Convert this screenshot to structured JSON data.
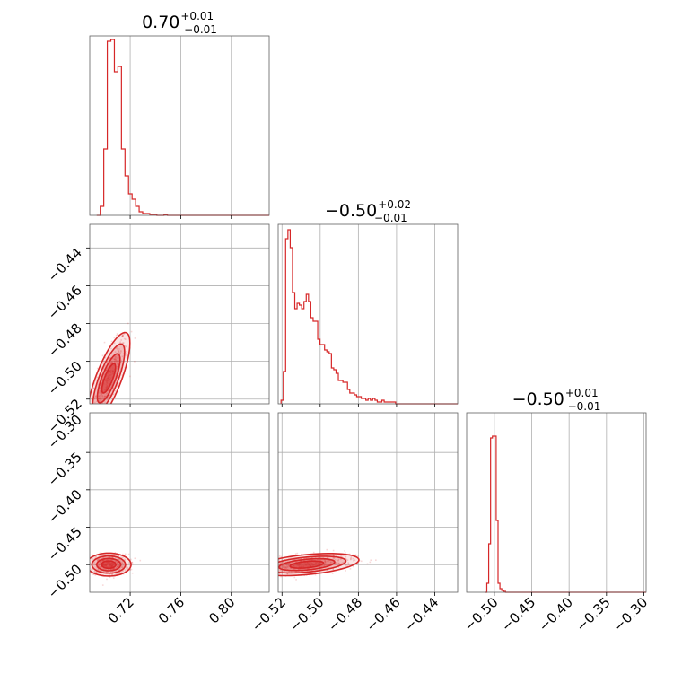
{
  "accent_color": "#d62728",
  "chart_data": {
    "type": "corner",
    "parameters": 3,
    "grid": true,
    "titles": [
      {
        "value": "0.70",
        "plus": "+0.01",
        "minus": "−0.01"
      },
      {
        "value": "−0.50",
        "plus": "+0.02",
        "minus": "−0.01"
      },
      {
        "value": "−0.50",
        "plus": "+0.01",
        "minus": "−0.01"
      }
    ],
    "axes": [
      {
        "range": [
          0.688,
          0.83
        ],
        "ticks": [
          0.72,
          0.76,
          0.8
        ],
        "tick_labels": [
          "0.72",
          "0.76",
          "0.80"
        ]
      },
      {
        "range": [
          -0.522,
          -0.428
        ],
        "ticks": [
          -0.52,
          -0.5,
          -0.48,
          -0.46,
          -0.44
        ],
        "tick_labels": [
          "−0.52",
          "−0.50",
          "−0.48",
          "−0.46",
          "−0.44"
        ]
      },
      {
        "range": [
          -0.537,
          -0.297
        ],
        "ticks": [
          -0.5,
          -0.45,
          -0.4,
          -0.35,
          -0.3
        ],
        "tick_labels": [
          "−0.50",
          "−0.45",
          "−0.40",
          "−0.35",
          "−0.30"
        ]
      }
    ],
    "y_axes": [
      {
        "row": 1,
        "range": [
          -0.5225,
          -0.4275
        ],
        "ticks": [
          -0.52,
          -0.5,
          -0.48,
          -0.46,
          -0.44
        ],
        "tick_labels": [
          "−0.52",
          "−0.50",
          "−0.48",
          "−0.46",
          "−0.44"
        ]
      },
      {
        "row": 2,
        "range": [
          -0.537,
          -0.297
        ],
        "ticks": [
          -0.5,
          -0.45,
          -0.4,
          -0.35,
          -0.3
        ],
        "tick_labels": [
          "−0.50",
          "−0.45",
          "−0.40",
          "−0.35",
          "−0.30"
        ]
      }
    ],
    "histograms": [
      {
        "param": 0,
        "bin_edges": [
          0.6935,
          0.6963,
          0.6991,
          0.7019,
          0.7047,
          0.7075,
          0.7103,
          0.7131,
          0.7159,
          0.7187,
          0.7215,
          0.7243,
          0.7271,
          0.7299,
          0.7327,
          0.7355,
          0.7383,
          0.7411,
          0.7439,
          0.7467,
          0.7495,
          0.7523,
          0.7551
        ],
        "heights": [
          0.0,
          0.05,
          0.37,
          0.97,
          0.98,
          0.8,
          0.83,
          0.37,
          0.22,
          0.12,
          0.09,
          0.05,
          0.02,
          0.01,
          0.01,
          0.005,
          0.005,
          0.0,
          0.0,
          0.003,
          0.0,
          0.0
        ]
      },
      {
        "param": 1,
        "bin_edges": [
          -0.5205,
          -0.5193,
          -0.5181,
          -0.5169,
          -0.5157,
          -0.5145,
          -0.5133,
          -0.5121,
          -0.5109,
          -0.5097,
          -0.5085,
          -0.5073,
          -0.5061,
          -0.5049,
          -0.5037,
          -0.5025,
          -0.5013,
          -0.5001,
          -0.4989,
          -0.4977,
          -0.4965,
          -0.4953,
          -0.4941,
          -0.4929,
          -0.4917,
          -0.4905,
          -0.4893,
          -0.4881,
          -0.4869,
          -0.4857,
          -0.4845,
          -0.4833,
          -0.4821,
          -0.4809,
          -0.4797,
          -0.4785,
          -0.4773,
          -0.4761,
          -0.4749,
          -0.4737,
          -0.4725,
          -0.4713,
          -0.4701,
          -0.4689,
          -0.4677,
          -0.4665,
          -0.4653,
          -0.4641,
          -0.4629,
          -0.4617,
          -0.4605,
          -0.4593,
          -0.4581
        ],
        "heights": [
          0.02,
          0.18,
          0.92,
          0.97,
          0.87,
          0.62,
          0.53,
          0.56,
          0.55,
          0.53,
          0.57,
          0.61,
          0.57,
          0.48,
          0.46,
          0.46,
          0.36,
          0.33,
          0.33,
          0.3,
          0.29,
          0.28,
          0.2,
          0.19,
          0.17,
          0.13,
          0.13,
          0.12,
          0.12,
          0.08,
          0.06,
          0.06,
          0.05,
          0.04,
          0.04,
          0.03,
          0.03,
          0.02,
          0.03,
          0.02,
          0.03,
          0.02,
          0.01,
          0.01,
          0.02,
          0.01,
          0.01,
          0.01,
          0.01,
          0.01,
          0.0,
          0.0
        ]
      },
      {
        "param": 2,
        "bin_edges": [
          -0.5125,
          -0.51,
          -0.5075,
          -0.505,
          -0.5025,
          -0.5,
          -0.4975,
          -0.495,
          -0.4925,
          -0.49,
          -0.4875,
          -0.485,
          -0.4825,
          -0.48,
          -0.4775,
          -0.475,
          -0.4725
        ],
        "heights": [
          0.0,
          0.05,
          0.27,
          0.86,
          0.87,
          0.87,
          0.4,
          0.05,
          0.02,
          0.01,
          0.005,
          0.0,
          0.0,
          0.0,
          0.0,
          0.0
        ]
      }
    ],
    "contours": [
      {
        "x_param": 0,
        "y_param": 1,
        "center": [
          0.703,
          -0.509
        ],
        "cov": [
          [
            3.6e-05,
            4e-05
          ],
          [
            4e-05,
            7.5e-05
          ]
        ],
        "levels": [
          0.9,
          1.5,
          2.1,
          2.8
        ]
      },
      {
        "x_param": 0,
        "y_param": 2,
        "center": [
          0.703,
          -0.5
        ],
        "cov": [
          [
            4e-05,
            0.0
          ],
          [
            0.0,
            3e-05
          ]
        ],
        "levels": [
          0.9,
          1.5,
          2.1,
          2.8
        ]
      },
      {
        "x_param": 1,
        "y_param": 2,
        "center": [
          -0.507,
          -0.5
        ],
        "cov": [
          [
            9.5e-05,
            2.2e-05
          ],
          [
            2.2e-05,
            2.8e-05
          ]
        ],
        "levels": [
          0.9,
          1.5,
          2.1,
          2.8
        ]
      }
    ]
  }
}
